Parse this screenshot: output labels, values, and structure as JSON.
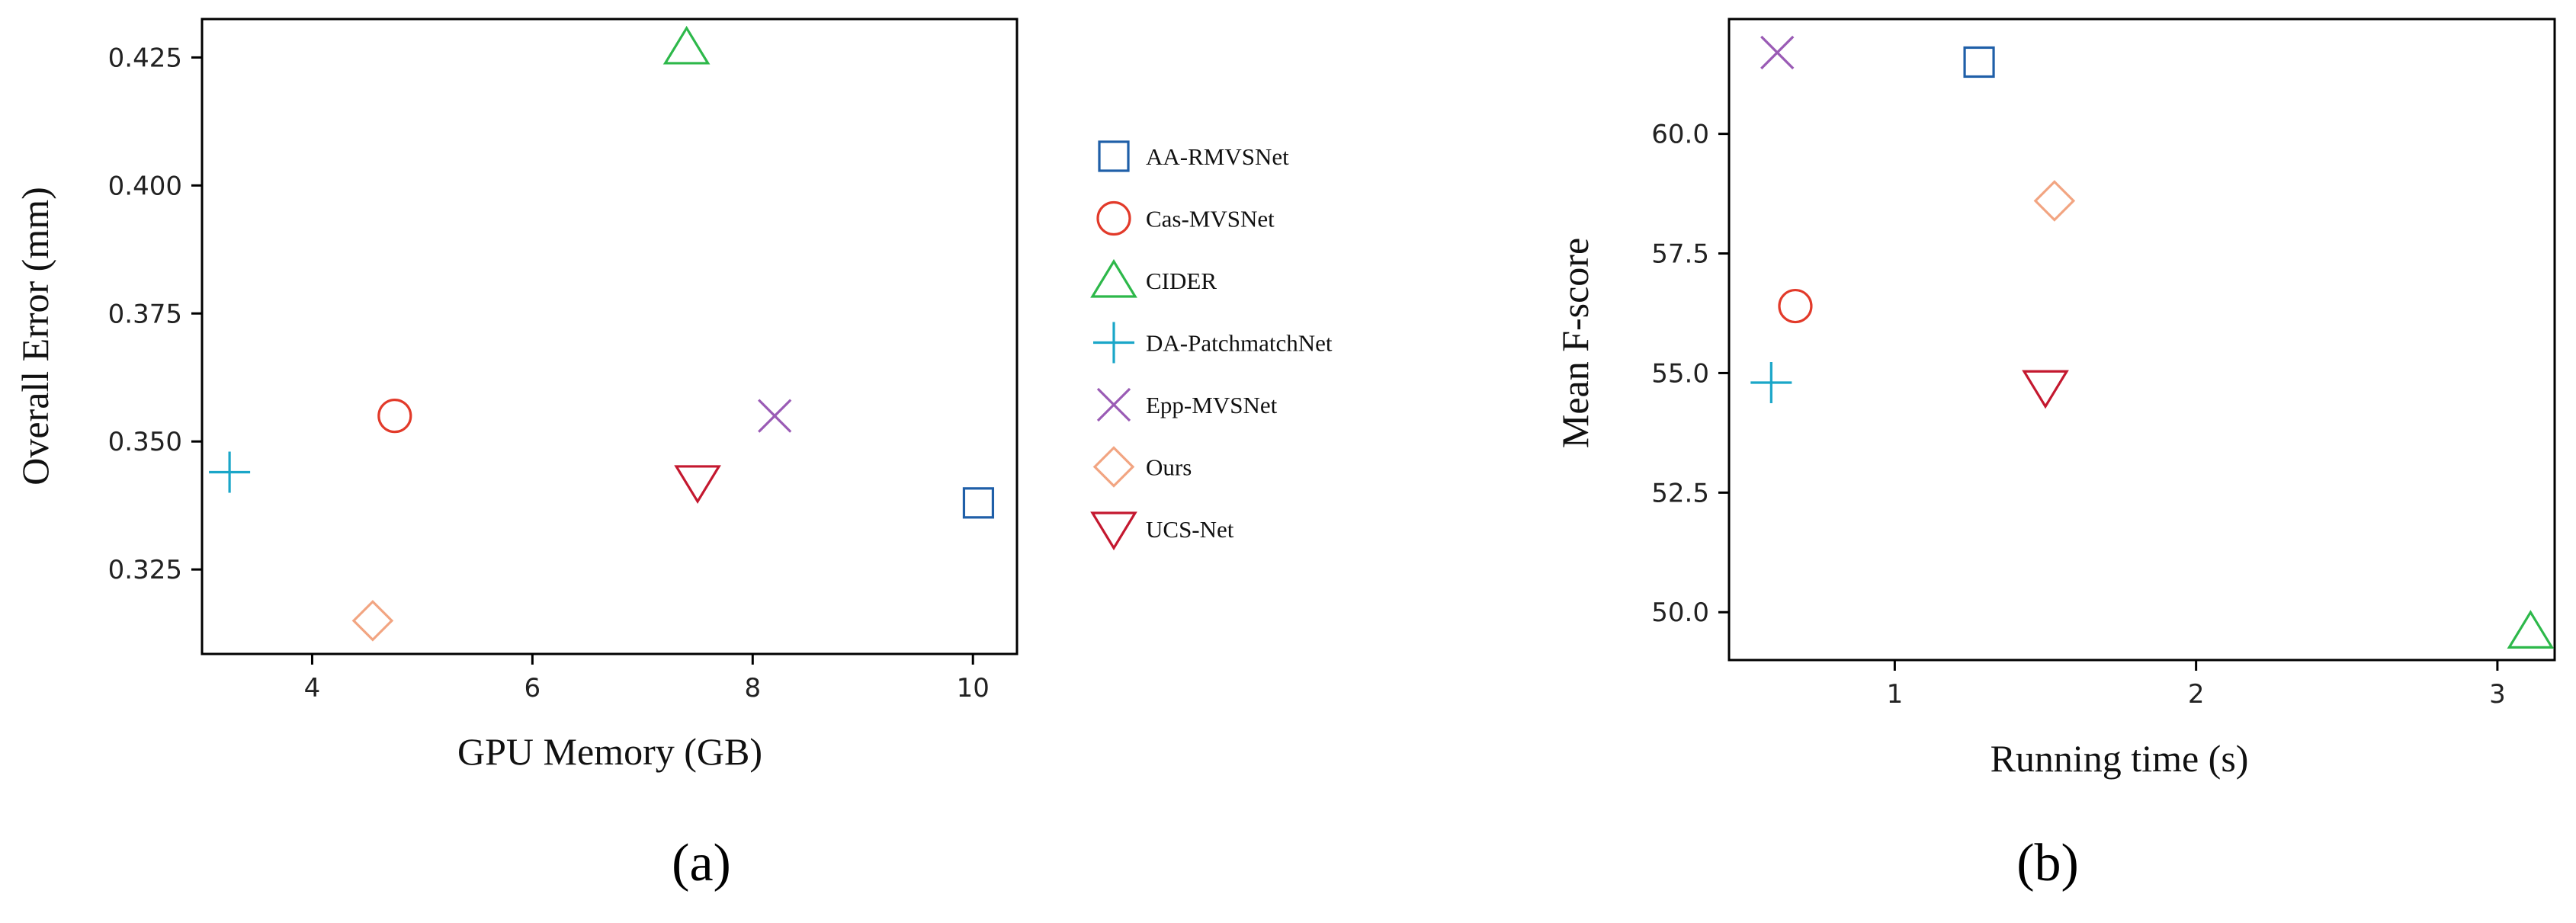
{
  "colors": {
    "AA-RMVSNet": "#1f5fa8",
    "Cas-MVSNet": "#e23a2a",
    "CIDER": "#2db84a",
    "DA-PatchmatchNet": "#1aa6c8",
    "Epp-MVSNet": "#9a5bb5",
    "Ours": "#f2a582",
    "UCS-Net": "#c4182f"
  },
  "markers": {
    "AA-RMVSNet": "square",
    "Cas-MVSNet": "circle",
    "CIDER": "triangle-up",
    "DA-PatchmatchNet": "plus",
    "Epp-MVSNet": "x",
    "Ours": "diamond",
    "UCS-Net": "triangle-down"
  },
  "legend": {
    "items": [
      "AA-RMVSNet",
      "Cas-MVSNet",
      "CIDER",
      "DA-PatchmatchNet",
      "Epp-MVSNet",
      "Ours",
      "UCS-Net"
    ]
  },
  "chart_data": [
    {
      "type": "scatter",
      "panel_label": "(a)",
      "title": "",
      "xlabel": "GPU Memory (GB)",
      "ylabel": "Overall Error (mm)",
      "xlim": [
        3.0,
        10.4
      ],
      "ylim": [
        0.3085,
        0.4325
      ],
      "xticks": [
        4,
        6,
        8,
        10
      ],
      "xtick_labels": [
        "4",
        "6",
        "8",
        "10"
      ],
      "yticks": [
        0.325,
        0.35,
        0.375,
        0.4,
        0.425
      ],
      "ytick_labels": [
        "0.325",
        "0.350",
        "0.375",
        "0.400",
        "0.425"
      ],
      "points": [
        {
          "name": "AA-RMVSNet",
          "x": 10.05,
          "y": 0.338
        },
        {
          "name": "Cas-MVSNet",
          "x": 4.75,
          "y": 0.355
        },
        {
          "name": "CIDER",
          "x": 7.4,
          "y": 0.427
        },
        {
          "name": "DA-PatchmatchNet",
          "x": 3.25,
          "y": 0.344
        },
        {
          "name": "Epp-MVSNet",
          "x": 8.2,
          "y": 0.355
        },
        {
          "name": "Ours",
          "x": 4.55,
          "y": 0.315
        },
        {
          "name": "UCS-Net",
          "x": 7.5,
          "y": 0.342
        }
      ]
    },
    {
      "type": "scatter",
      "panel_label": "(b)",
      "title": "",
      "xlabel": "Running time (s)",
      "ylabel": "Mean F-score",
      "xlim": [
        0.45,
        3.19
      ],
      "ylim": [
        49.0,
        62.4
      ],
      "xticks": [
        1,
        2,
        3
      ],
      "xtick_labels": [
        "1",
        "2",
        "3"
      ],
      "yticks": [
        50.0,
        52.5,
        55.0,
        57.5,
        60.0
      ],
      "ytick_labels": [
        "50.0",
        "52.5",
        "55.0",
        "57.5",
        "60.0"
      ],
      "points": [
        {
          "name": "AA-RMVSNet",
          "x": 1.28,
          "y": 61.5
        },
        {
          "name": "Cas-MVSNet",
          "x": 0.67,
          "y": 56.4
        },
        {
          "name": "CIDER",
          "x": 3.11,
          "y": 49.6
        },
        {
          "name": "DA-PatchmatchNet",
          "x": 0.59,
          "y": 54.8
        },
        {
          "name": "Epp-MVSNet",
          "x": 0.61,
          "y": 61.7
        },
        {
          "name": "Ours",
          "x": 1.53,
          "y": 58.6
        },
        {
          "name": "UCS-Net",
          "x": 1.5,
          "y": 54.7
        }
      ]
    }
  ]
}
